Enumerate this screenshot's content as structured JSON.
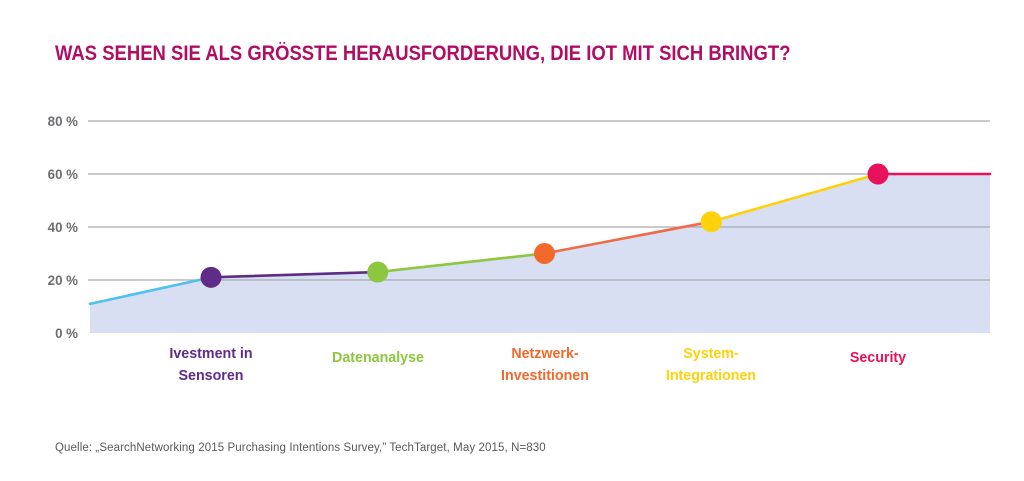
{
  "title": "WAS SEHEN SIE ALS GRÖSSTE HERAUSFORDERUNG, DIE IOT MIT SICH BRINGT?",
  "source": "Quelle: „SearchNetworking 2015 Purchasing Intentions Survey,” TechTarget, May 2015, N=830",
  "colors": {
    "title": "#b00e63",
    "axis_text": "#6d6e71",
    "gridline": "#a9aaac",
    "source_text": "#58595b"
  },
  "chart_data": {
    "type": "area",
    "title": "WAS SEHEN SIE ALS GRÖSSTE HERAUSFORDERUNG, DIE IOT MIT SICH BRINGT?",
    "categories": [
      "Ivestment in Sensoren",
      "Datenanalyse",
      "Netzwerk-Investitionen",
      "System-Integrationen",
      "Security"
    ],
    "category_lines": [
      [
        "Ivestment in",
        "Sensoren"
      ],
      [
        "Datenanalyse"
      ],
      [
        "Netzwerk-",
        "Investitionen"
      ],
      [
        "System-",
        "Integrationen"
      ],
      [
        "Security"
      ]
    ],
    "values": [
      21,
      23,
      30,
      42,
      60
    ],
    "edge_start_value": 11,
    "edge_end_value": 60,
    "point_colors": [
      "#5f2c87",
      "#8dc63f",
      "#f1692b",
      "#ffd10a",
      "#e8115b"
    ],
    "segment_colors": [
      "#4ec1ef",
      "#5f2c87",
      "#8dc63f",
      "#ef6b4a",
      "#ffd10a",
      "#e8115b"
    ],
    "area_fill": "#d8dff2",
    "y_ticks": [
      0,
      20,
      40,
      60,
      80
    ],
    "y_tick_labels": [
      "0 %",
      "20 %",
      "40 %",
      "60 %",
      "80 %"
    ],
    "ylabel": "",
    "xlabel": "",
    "ylim": [
      0,
      88
    ],
    "grid": true,
    "legend": "none"
  }
}
